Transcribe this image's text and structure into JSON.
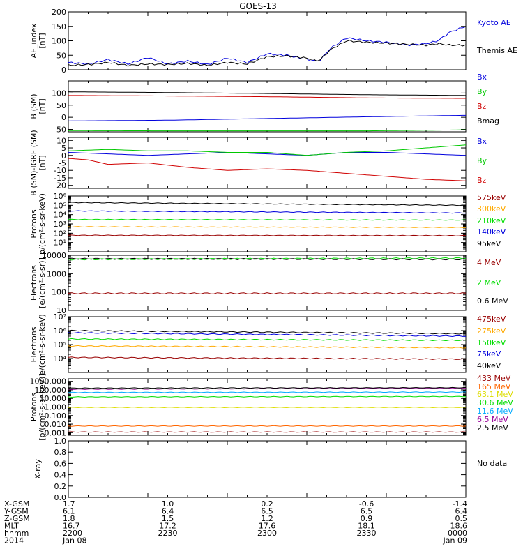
{
  "title": "GOES-13",
  "colors": {
    "black": "#000000",
    "blue": "#0000dd",
    "green": "#00c800",
    "red": "#d00000",
    "orange": "#ffaa00",
    "brightgreen": "#00dd00",
    "lightblue": "#00aaff",
    "purple": "#990099",
    "darkred": "#990000",
    "brown": "#aa3300",
    "yellow": "#dddd00",
    "darkorange": "#ff6600"
  },
  "chart_data": [
    {
      "id": "ae",
      "type": "line",
      "ylabel": [
        "AE_index",
        "[nT]"
      ],
      "ylim": [
        0,
        200
      ],
      "yscale": "linear",
      "yticks": [
        0,
        50,
        100,
        150,
        200
      ],
      "yticklabels": [
        "0",
        "50",
        "100",
        "150",
        "200"
      ],
      "series": [
        {
          "name": "Kyoto AE",
          "color": "#0000dd",
          "x": [
            0,
            0.05,
            0.1,
            0.15,
            0.2,
            0.25,
            0.3,
            0.35,
            0.4,
            0.45,
            0.5,
            0.55,
            0.6,
            0.63,
            0.66,
            0.7,
            0.75,
            0.8,
            0.85,
            0.9,
            0.93,
            0.96,
            1.0
          ],
          "y": [
            25,
            20,
            35,
            20,
            42,
            20,
            30,
            18,
            40,
            25,
            55,
            50,
            35,
            28,
            75,
            110,
            100,
            95,
            85,
            90,
            100,
            130,
            150
          ]
        },
        {
          "name": "Themis AE",
          "color": "#000000",
          "x": [
            0,
            0.05,
            0.1,
            0.15,
            0.2,
            0.25,
            0.3,
            0.35,
            0.4,
            0.45,
            0.5,
            0.55,
            0.6,
            0.63,
            0.66,
            0.7,
            0.75,
            0.8,
            0.85,
            0.9,
            0.93,
            0.96,
            1.0
          ],
          "y": [
            15,
            18,
            25,
            15,
            20,
            18,
            22,
            15,
            25,
            20,
            45,
            48,
            40,
            30,
            70,
            100,
            95,
            92,
            88,
            85,
            90,
            85,
            85
          ]
        }
      ]
    },
    {
      "id": "bsm",
      "type": "line",
      "ylabel": [
        "B (SM)",
        "[nT]"
      ],
      "ylim": [
        -60,
        150
      ],
      "yscale": "linear",
      "yticks": [
        -50,
        0,
        50,
        100
      ],
      "yticklabels": [
        "-50",
        "0",
        "50",
        "100"
      ],
      "series": [
        {
          "name": "Bx",
          "color": "#0000dd",
          "x": [
            0,
            0.25,
            0.5,
            0.75,
            1
          ],
          "y": [
            -15,
            -12,
            -5,
            2,
            8
          ]
        },
        {
          "name": "By",
          "color": "#00c800",
          "x": [
            0,
            0.25,
            0.5,
            0.75,
            1
          ],
          "y": [
            -55,
            -56,
            -56,
            -56,
            -52
          ]
        },
        {
          "name": "Bz",
          "color": "#d00000",
          "x": [
            0,
            0.25,
            0.5,
            0.75,
            1
          ],
          "y": [
            90,
            88,
            85,
            80,
            78
          ]
        },
        {
          "name": "Bmag",
          "color": "#000000",
          "x": [
            0,
            0.25,
            0.5,
            0.75,
            1
          ],
          "y": [
            105,
            102,
            98,
            93,
            90
          ]
        }
      ]
    },
    {
      "id": "dbsm",
      "type": "line",
      "ylabel": [
        "B (SM)-IGRF (SM)",
        "[nT]"
      ],
      "ylim": [
        -22,
        12
      ],
      "yscale": "linear",
      "yticks": [
        -20,
        -15,
        -10,
        -5,
        0,
        5,
        10
      ],
      "yticklabels": [
        "-20",
        "-15",
        "-10",
        "-5",
        "0",
        "5",
        "10"
      ],
      "series": [
        {
          "name": "Bx",
          "color": "#0000dd",
          "x": [
            0,
            0.1,
            0.2,
            0.3,
            0.4,
            0.5,
            0.6,
            0.7,
            0.8,
            0.9,
            1
          ],
          "y": [
            2,
            1,
            0,
            1,
            2,
            1,
            0,
            2,
            2,
            1,
            0
          ]
        },
        {
          "name": "By",
          "color": "#00c800",
          "x": [
            0,
            0.1,
            0.2,
            0.3,
            0.4,
            0.5,
            0.6,
            0.7,
            0.8,
            0.9,
            1
          ],
          "y": [
            3,
            4,
            3,
            3,
            2,
            2,
            0,
            2,
            3,
            5,
            7
          ]
        },
        {
          "name": "Bz",
          "color": "#d00000",
          "x": [
            0,
            0.05,
            0.1,
            0.2,
            0.3,
            0.4,
            0.5,
            0.6,
            0.7,
            0.8,
            0.9,
            1
          ],
          "y": [
            -2,
            -3,
            -6,
            -5,
            -8,
            -10,
            -9,
            -10,
            -12,
            -14,
            -16,
            -17
          ]
        }
      ]
    },
    {
      "id": "protons1",
      "type": "line",
      "ylabel": [
        "Protons",
        "p/(cm²-s-sr-keV)"
      ],
      "ylim": [
        1,
        1000000
      ],
      "yscale": "log",
      "yticks": [
        10,
        100,
        1000,
        10000,
        100000,
        1000000
      ],
      "yticklabels": [
        "10¹",
        "10²",
        "10³",
        "10⁴",
        "10⁵",
        "10⁶"
      ],
      "series": [
        {
          "name": "575keV",
          "color": "#990000",
          "x": [
            0,
            1
          ],
          "y": [
            60,
            55
          ]
        },
        {
          "name": "300keV",
          "color": "#ffaa00",
          "x": [
            0,
            1
          ],
          "y": [
            500,
            420
          ]
        },
        {
          "name": "210keV",
          "color": "#00dd00",
          "x": [
            0,
            1
          ],
          "y": [
            3000,
            2600
          ]
        },
        {
          "name": "140keV",
          "color": "#0000dd",
          "x": [
            0,
            1
          ],
          "y": [
            25000,
            15000
          ]
        },
        {
          "name": "95keV",
          "color": "#000000",
          "x": [
            0,
            1
          ],
          "y": [
            200000,
            100000
          ]
        }
      ]
    },
    {
      "id": "electrons1",
      "type": "line",
      "ylabel": [
        "Electrons",
        "[e/(cm²-s-sr)]"
      ],
      "ylim": [
        10,
        10000
      ],
      "yscale": "log",
      "yticks": [
        10,
        100,
        1000,
        10000
      ],
      "yticklabels": [
        "10",
        "100",
        "1000",
        "10000"
      ],
      "series": [
        {
          "name": "4 MeV",
          "color": "#990000",
          "x": [
            0,
            1
          ],
          "y": [
            85,
            85
          ]
        },
        {
          "name": "2 MeV",
          "color": "#00dd00",
          "x": [
            0,
            1
          ],
          "y": [
            6000,
            7000
          ]
        },
        {
          "name": "0.6 MeV",
          "color": "#000000",
          "x": [
            0,
            1
          ],
          "y": [
            6500,
            6000
          ]
        }
      ]
    },
    {
      "id": "electrons2",
      "type": "line",
      "ylabel": [
        "Electrons",
        "e/(cm²-s-sr-keV)"
      ],
      "ylim": [
        1000,
        10000000
      ],
      "yscale": "log",
      "yticks": [
        10000,
        100000,
        1000000,
        10000000
      ],
      "yticklabels": [
        "10⁴",
        "10⁵",
        "10⁶",
        "10⁷"
      ],
      "series": [
        {
          "name": "475keV",
          "color": "#990000",
          "x": [
            0,
            1
          ],
          "y": [
            12000,
            9000
          ]
        },
        {
          "name": "275keV",
          "color": "#ffaa00",
          "x": [
            0,
            1
          ],
          "y": [
            80000,
            60000
          ]
        },
        {
          "name": "150keV",
          "color": "#00dd00",
          "x": [
            0,
            1
          ],
          "y": [
            250000,
            200000
          ]
        },
        {
          "name": "75keV",
          "color": "#0000dd",
          "x": [
            0,
            1
          ],
          "y": [
            700000,
            400000
          ]
        },
        {
          "name": "40keV",
          "color": "#000000",
          "x": [
            0,
            1
          ],
          "y": [
            1000000,
            600000
          ]
        }
      ]
    },
    {
      "id": "protons2",
      "type": "line",
      "ylabel": [
        "Protons",
        "[p/(cm²-s-sr-keV)]"
      ],
      "ylim": [
        0.0005,
        2000
      ],
      "yscale": "log",
      "yticks": [
        0.001,
        0.01,
        0.1,
        1,
        10,
        100,
        1000
      ],
      "yticklabels": [
        "0.001",
        "0.010",
        "0.100",
        "1.000",
        "10.000",
        "100.000",
        "1000.000"
      ],
      "series": [
        {
          "name": "433 MeV",
          "color": "#990000",
          "x": [
            0,
            1
          ],
          "y": [
            0.0012,
            0.0012
          ]
        },
        {
          "name": "165 MeV",
          "color": "#ff6600",
          "x": [
            0,
            1
          ],
          "y": [
            0.006,
            0.006
          ]
        },
        {
          "name": "63.1 MeV",
          "color": "#dddd00",
          "x": [
            0,
            1
          ],
          "y": [
            0.9,
            0.9
          ]
        },
        {
          "name": "30.6 MeV",
          "color": "#00dd00",
          "x": [
            0,
            1
          ],
          "y": [
            15,
            17
          ]
        },
        {
          "name": "11.6 MeV",
          "color": "#00aaff",
          "x": [
            0,
            1
          ],
          "y": [
            50,
            55
          ]
        },
        {
          "name": "6.5 MeV",
          "color": "#990099",
          "x": [
            0,
            1
          ],
          "y": [
            120,
            160
          ]
        },
        {
          "name": "2.5 MeV",
          "color": "#000000",
          "x": [
            0,
            1
          ],
          "y": [
            160,
            180
          ]
        }
      ]
    },
    {
      "id": "xray",
      "type": "line",
      "ylabel": [
        "X-ray"
      ],
      "ylim": [
        0,
        1
      ],
      "yscale": "linear",
      "yticks": [
        0,
        0.2,
        0.4,
        0.6,
        0.8,
        1.0
      ],
      "yticklabels": [
        "0.0",
        "0.2",
        "0.4",
        "0.6",
        "0.8",
        "1.0"
      ],
      "series": [],
      "note": "No data"
    }
  ],
  "bottom": {
    "row_labels": [
      "X-GSM",
      "Y-GSM",
      "Z-GSM",
      "MLT",
      "hhmm",
      "2014"
    ],
    "columns": [
      {
        "values": [
          "1.7",
          "6.1",
          "1.8",
          "16.7",
          "2200",
          "Jan 08"
        ]
      },
      {
        "values": [
          "1.0",
          "6.4",
          "1.5",
          "17.2",
          "2230",
          ""
        ]
      },
      {
        "values": [
          "0.2",
          "6.5",
          "1.2",
          "17.6",
          "2300",
          ""
        ]
      },
      {
        "values": [
          "-0.6",
          "6.5",
          "0.9",
          "18.1",
          "2330",
          ""
        ]
      },
      {
        "values": [
          "-1.4",
          "6.4",
          "0.5",
          "18.6",
          "0000",
          "Jan 09"
        ]
      }
    ]
  }
}
